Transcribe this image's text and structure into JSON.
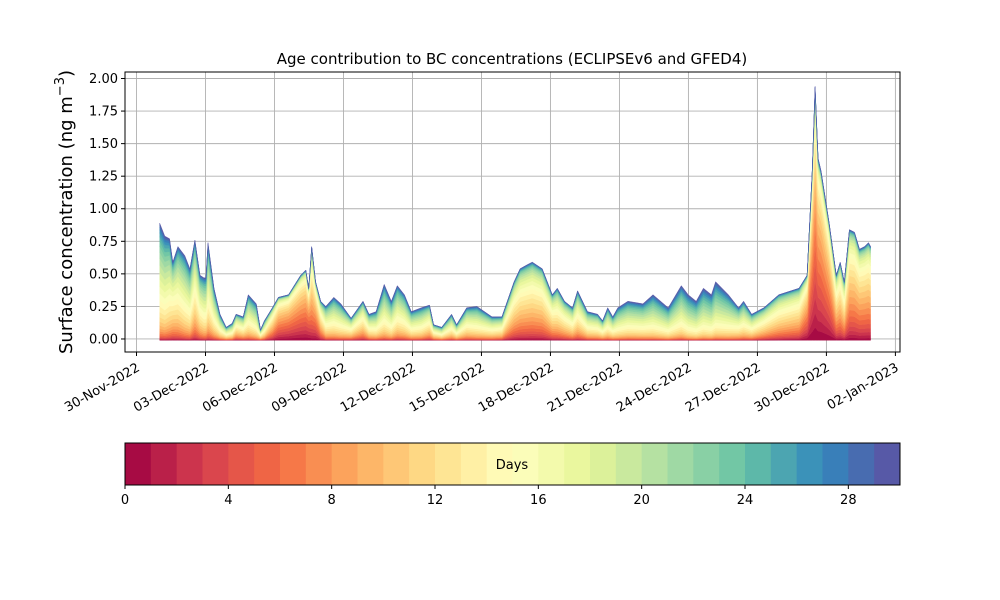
{
  "chart_data": {
    "type": "area",
    "stacked": true,
    "title": "Age contribution to BC concentrations (ECLIPSEv6 and GFED4)",
    "ylabel": {
      "text": "Surface concentration (ng m",
      "superscript": "−3",
      "suffix": ")"
    },
    "xlabel": "",
    "ylim": [
      -0.1,
      2.05
    ],
    "yticks": [
      0.0,
      0.25,
      0.5,
      0.75,
      1.0,
      1.25,
      1.5,
      1.75,
      2.0
    ],
    "ytick_labels": [
      "0.00",
      "0.25",
      "0.50",
      "0.75",
      "1.00",
      "1.25",
      "1.50",
      "1.75",
      "2.00"
    ],
    "x_unit": "days since 30-Nov-2022",
    "xlim": [
      -0.5,
      33.2
    ],
    "xticks": [
      0,
      3,
      6,
      9,
      12,
      15,
      18,
      21,
      24,
      27,
      30,
      33
    ],
    "xtick_labels": [
      "30-Nov-2022",
      "03-Dec-2022",
      "06-Dec-2022",
      "09-Dec-2022",
      "12-Dec-2022",
      "15-Dec-2022",
      "18-Dec-2022",
      "21-Dec-2022",
      "24-Dec-2022",
      "27-Dec-2022",
      "30-Dec-2022",
      "02-Jan-2023"
    ],
    "grid": true,
    "x": [
      1.01,
      1.23,
      1.44,
      1.58,
      1.8,
      2.1,
      2.32,
      2.54,
      2.76,
      2.93,
      3.02,
      3.11,
      3.37,
      3.63,
      3.9,
      4.16,
      4.33,
      4.64,
      4.86,
      5.21,
      5.39,
      5.56,
      5.91,
      6.17,
      6.61,
      7.14,
      7.36,
      7.49,
      7.62,
      7.79,
      8.01,
      8.23,
      8.58,
      8.89,
      9.33,
      9.85,
      10.11,
      10.42,
      10.77,
      11.08,
      11.34,
      11.65,
      11.95,
      12.39,
      12.74,
      12.92,
      13.27,
      13.7,
      13.92,
      14.36,
      14.8,
      15.46,
      15.89,
      16.42,
      16.68,
      16.99,
      17.21,
      17.64,
      18.08,
      18.3,
      18.61,
      18.96,
      19.18,
      19.61,
      20.05,
      20.27,
      20.49,
      20.71,
      20.93,
      21.37,
      22.02,
      22.46,
      23.12,
      23.69,
      23.99,
      24.34,
      24.65,
      25.0,
      25.18,
      25.74,
      26.18,
      26.4,
      26.75,
      27.28,
      27.93,
      28.81,
      29.16,
      29.38,
      29.51,
      29.64,
      29.77,
      30.12,
      30.43,
      30.6,
      30.78,
      31.0,
      31.22,
      31.44,
      31.66,
      31.83,
      31.92
    ],
    "total": [
      0.9,
      0.8,
      0.78,
      0.6,
      0.72,
      0.65,
      0.55,
      0.77,
      0.5,
      0.48,
      0.48,
      0.75,
      0.4,
      0.2,
      0.1,
      0.13,
      0.2,
      0.18,
      0.35,
      0.28,
      0.08,
      0.15,
      0.25,
      0.33,
      0.35,
      0.5,
      0.54,
      0.4,
      0.72,
      0.45,
      0.3,
      0.26,
      0.33,
      0.28,
      0.17,
      0.3,
      0.2,
      0.22,
      0.43,
      0.3,
      0.42,
      0.35,
      0.22,
      0.25,
      0.27,
      0.12,
      0.1,
      0.2,
      0.12,
      0.25,
      0.26,
      0.18,
      0.18,
      0.45,
      0.55,
      0.58,
      0.6,
      0.55,
      0.35,
      0.4,
      0.3,
      0.25,
      0.38,
      0.22,
      0.2,
      0.15,
      0.25,
      0.18,
      0.25,
      0.3,
      0.28,
      0.35,
      0.25,
      0.42,
      0.35,
      0.3,
      0.4,
      0.35,
      0.45,
      0.35,
      0.25,
      0.3,
      0.2,
      0.25,
      0.35,
      0.4,
      0.5,
      1.3,
      1.95,
      1.4,
      1.3,
      0.9,
      0.5,
      0.6,
      0.45,
      0.85,
      0.83,
      0.7,
      0.72,
      0.75,
      0.72
    ],
    "mean_age_days": [
      18,
      18,
      17,
      15,
      16,
      17,
      17,
      15,
      16,
      17,
      17,
      17,
      17,
      17,
      16,
      16,
      14,
      15,
      17,
      18,
      15,
      15,
      11,
      8,
      7,
      7,
      7,
      6,
      10,
      8,
      12,
      16,
      17,
      17,
      15,
      14,
      16,
      17,
      18,
      18,
      17,
      17,
      17,
      17,
      15,
      15,
      16,
      16,
      16,
      16,
      17,
      16,
      15,
      12,
      12,
      12,
      12,
      12,
      13,
      14,
      14,
      15,
      15,
      16,
      16,
      16,
      17,
      17,
      18,
      18,
      18,
      19,
      19,
      19,
      20,
      20,
      20,
      20,
      20,
      19,
      17,
      17,
      16,
      14,
      13,
      12,
      8,
      6,
      6,
      6,
      6,
      7,
      11,
      11,
      12,
      10,
      10,
      10,
      10,
      10,
      10
    ],
    "age_bins": 30,
    "colorbar": {
      "label": "Days",
      "range": [
        0,
        30
      ],
      "ticks": [
        0,
        4,
        8,
        12,
        16,
        20,
        24,
        28
      ],
      "tick_labels": [
        "0",
        "4",
        "8",
        "12",
        "16",
        "20",
        "24",
        "28"
      ],
      "colormap_anchors": [
        "#9e0142",
        "#d53e4f",
        "#f46d43",
        "#fdae61",
        "#fee08b",
        "#ffffbf",
        "#e6f598",
        "#abdda4",
        "#66c2a5",
        "#3288bd",
        "#5e4fa2"
      ]
    }
  }
}
